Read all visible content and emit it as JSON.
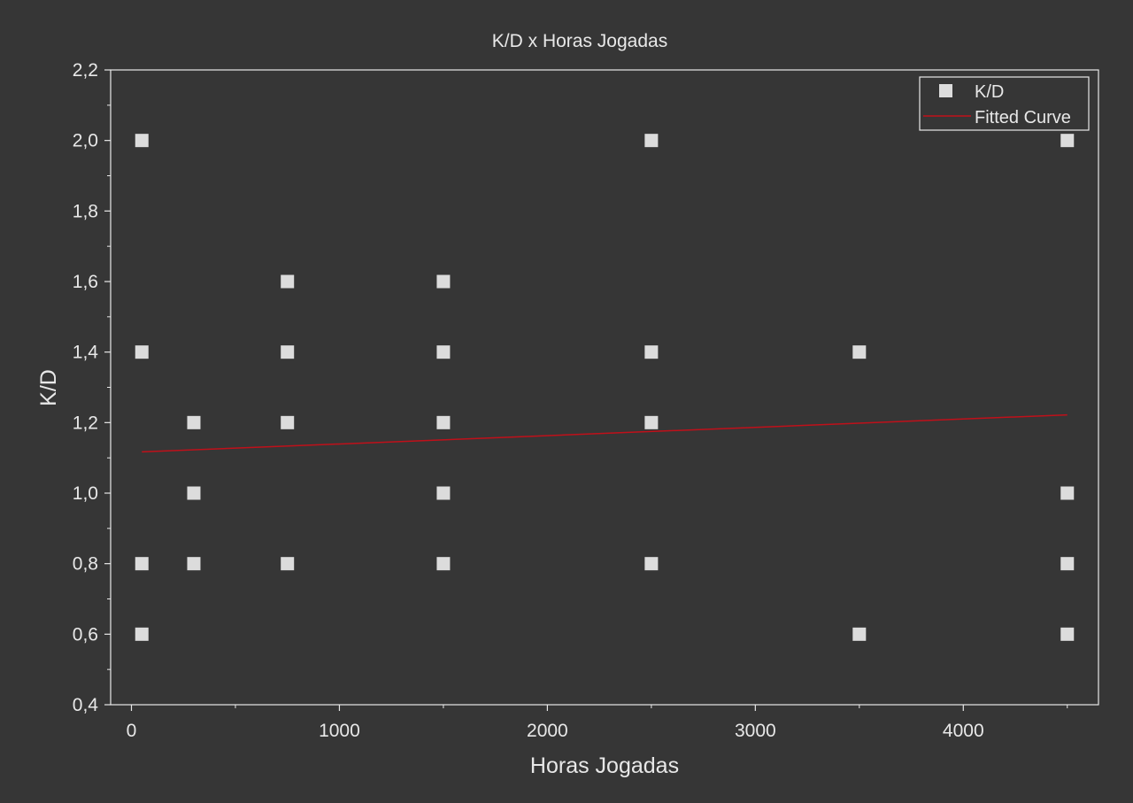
{
  "colors": {
    "background": "#363636",
    "foreground": "#e8e8e8",
    "marker": "#dcdcdc",
    "fit_line": "#c0101a"
  },
  "chart_data": {
    "type": "scatter",
    "title": "K/D x Horas Jogadas",
    "xlabel": "Horas Jogadas",
    "ylabel": "K/D",
    "xlim": [
      -100,
      4650
    ],
    "ylim": [
      0.4,
      2.2
    ],
    "x_ticks": [
      {
        "value": 0,
        "label": "0"
      },
      {
        "value": 1000,
        "label": "1000"
      },
      {
        "value": 2000,
        "label": "2000"
      },
      {
        "value": 3000,
        "label": "3000"
      },
      {
        "value": 4000,
        "label": "4000"
      }
    ],
    "y_ticks": [
      {
        "value": 0.4,
        "label": "0,4"
      },
      {
        "value": 0.6,
        "label": "0,6"
      },
      {
        "value": 0.8,
        "label": "0,8"
      },
      {
        "value": 1.0,
        "label": "1,0"
      },
      {
        "value": 1.2,
        "label": "1,2"
      },
      {
        "value": 1.4,
        "label": "1,4"
      },
      {
        "value": 1.6,
        "label": "1,6"
      },
      {
        "value": 1.8,
        "label": "1,8"
      },
      {
        "value": 2.0,
        "label": "2,0"
      },
      {
        "value": 2.2,
        "label": "2,2"
      }
    ],
    "x_minor_step": 500,
    "y_minor_step": 0.1,
    "grid": false,
    "legend_position": "top-right",
    "series": [
      {
        "name": "K/D",
        "kind": "scatter",
        "marker": "square",
        "points": [
          {
            "x": 50,
            "y": 2.0
          },
          {
            "x": 50,
            "y": 1.4
          },
          {
            "x": 50,
            "y": 0.8
          },
          {
            "x": 50,
            "y": 0.6
          },
          {
            "x": 300,
            "y": 1.2
          },
          {
            "x": 300,
            "y": 1.0
          },
          {
            "x": 300,
            "y": 0.8
          },
          {
            "x": 750,
            "y": 1.6
          },
          {
            "x": 750,
            "y": 1.4
          },
          {
            "x": 750,
            "y": 1.2
          },
          {
            "x": 750,
            "y": 0.8
          },
          {
            "x": 1500,
            "y": 1.6
          },
          {
            "x": 1500,
            "y": 1.4
          },
          {
            "x": 1500,
            "y": 1.2
          },
          {
            "x": 1500,
            "y": 1.0
          },
          {
            "x": 1500,
            "y": 0.8
          },
          {
            "x": 2500,
            "y": 2.0
          },
          {
            "x": 2500,
            "y": 1.4
          },
          {
            "x": 2500,
            "y": 1.2
          },
          {
            "x": 2500,
            "y": 0.8
          },
          {
            "x": 3500,
            "y": 1.4
          },
          {
            "x": 3500,
            "y": 0.6
          },
          {
            "x": 4500,
            "y": 2.0
          },
          {
            "x": 4500,
            "y": 1.0
          },
          {
            "x": 4500,
            "y": 0.8
          },
          {
            "x": 4500,
            "y": 0.6
          }
        ]
      },
      {
        "name": "Fitted Curve",
        "kind": "line",
        "points": [
          {
            "x": 50,
            "y": 1.117
          },
          {
            "x": 4500,
            "y": 1.222
          }
        ]
      }
    ]
  }
}
